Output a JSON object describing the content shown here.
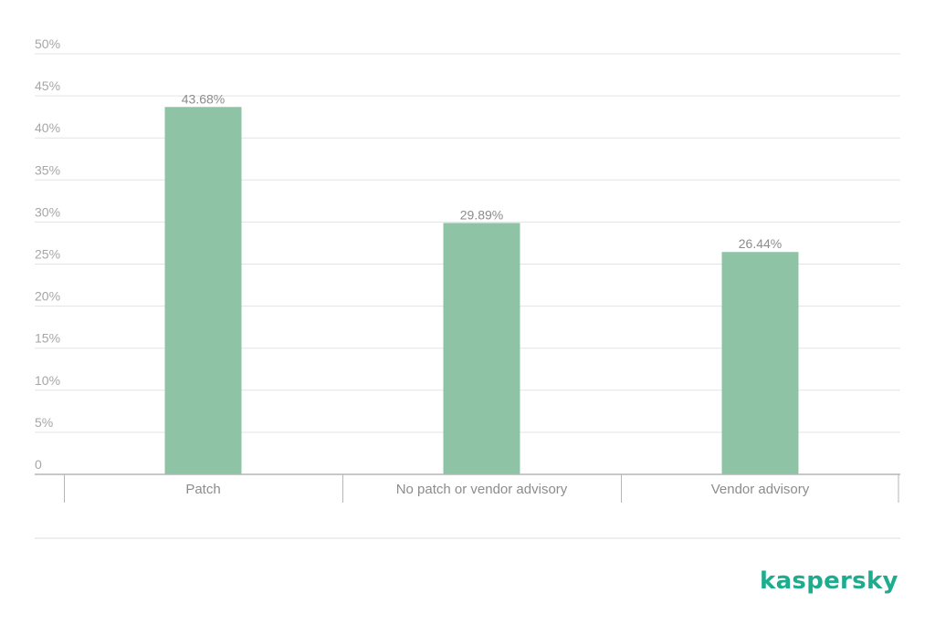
{
  "chart_data": {
    "type": "bar",
    "categories": [
      "Patch",
      "No patch or vendor advisory",
      "Vendor advisory"
    ],
    "values": [
      43.68,
      29.89,
      26.44
    ],
    "data_labels": [
      "43.68%",
      "29.89%",
      "26.44%"
    ],
    "y_tick_labels": [
      "0",
      "5%",
      "10%",
      "15%",
      "20%",
      "25%",
      "30%",
      "35%",
      "40%",
      "45%",
      "50%"
    ],
    "ylim": [
      0,
      50
    ],
    "y_step": 5,
    "grid": true,
    "bar_color": "#8fc3a6",
    "grid_color": "#e3e3e3",
    "axis_color": "#b5b5b5"
  },
  "brand": {
    "logo_text": "kaspersky",
    "logo_color": "#1eac8e"
  }
}
